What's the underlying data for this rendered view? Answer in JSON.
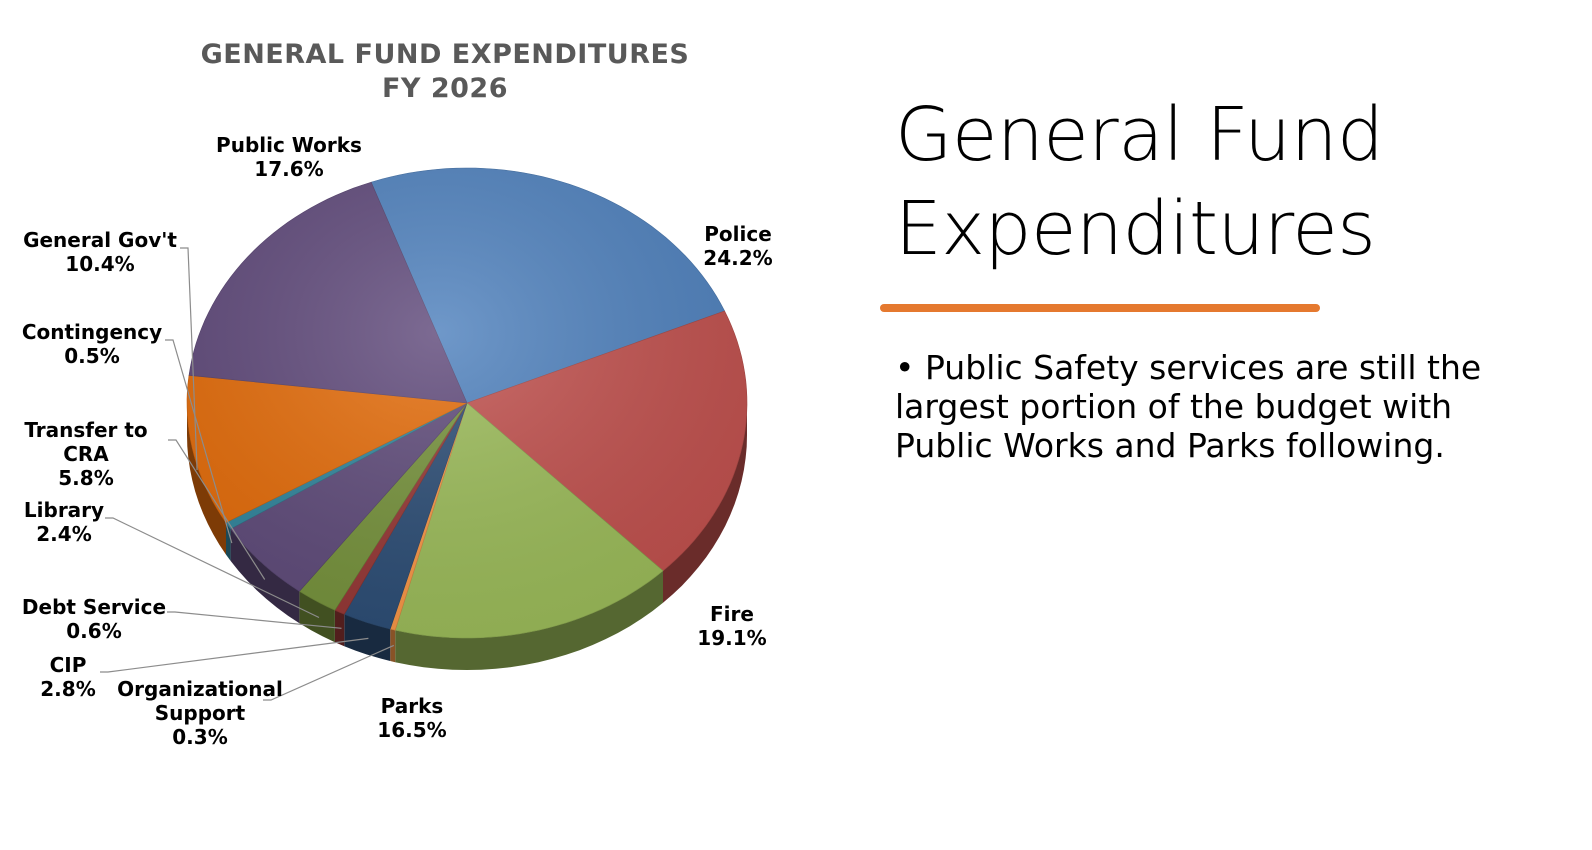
{
  "slide": {
    "title_line1": "General Fund",
    "title_line2": "Expenditures",
    "bullet_marker": "•",
    "bullet": "Public Safety services are still the largest portion of the budget with Public Works and Parks following.",
    "accent_color": "#e5792f"
  },
  "chart_data": {
    "type": "pie",
    "title": [
      "GENERAL FUND EXPENDITURES",
      "FY 2026"
    ],
    "style": "3d-tilted",
    "slices": [
      {
        "name": "Police",
        "label_lines": [
          "Police"
        ],
        "value": 24.2,
        "value_label": "24.2%",
        "color": "#4f81bd"
      },
      {
        "name": "Fire",
        "label_lines": [
          "Fire"
        ],
        "value": 19.1,
        "value_label": "19.1%",
        "color": "#c0504d"
      },
      {
        "name": "Parks",
        "label_lines": [
          "Parks"
        ],
        "value": 16.5,
        "value_label": "16.5%",
        "color": "#9bbb59"
      },
      {
        "name": "Organizational Support",
        "label_lines": [
          "Organizational",
          "Support"
        ],
        "value": 0.3,
        "value_label": "0.3%",
        "color": "#f79646"
      },
      {
        "name": "CIP",
        "label_lines": [
          "CIP"
        ],
        "value": 2.8,
        "value_label": "2.8%",
        "color": "#2c4d75"
      },
      {
        "name": "Debt Service",
        "label_lines": [
          "Debt Service"
        ],
        "value": 0.6,
        "value_label": "0.6%",
        "color": "#953735"
      },
      {
        "name": "Library",
        "label_lines": [
          "Library"
        ],
        "value": 2.4,
        "value_label": "2.4%",
        "color": "#76923c"
      },
      {
        "name": "Transfer to CRA",
        "label_lines": [
          "Transfer to",
          "CRA"
        ],
        "value": 5.8,
        "value_label": "5.8%",
        "color": "#5f4b7a"
      },
      {
        "name": "Contingency",
        "label_lines": [
          "Contingency"
        ],
        "value": 0.5,
        "value_label": "0.5%",
        "color": "#31859c"
      },
      {
        "name": "General Gov't",
        "label_lines": [
          "General Gov't"
        ],
        "value": 10.4,
        "value_label": "10.4%",
        "color": "#e46c0a"
      },
      {
        "name": "Public Works",
        "label_lines": [
          "Public Works"
        ],
        "value": 17.6,
        "value_label": "17.6%",
        "color": "#604a7b"
      }
    ]
  }
}
